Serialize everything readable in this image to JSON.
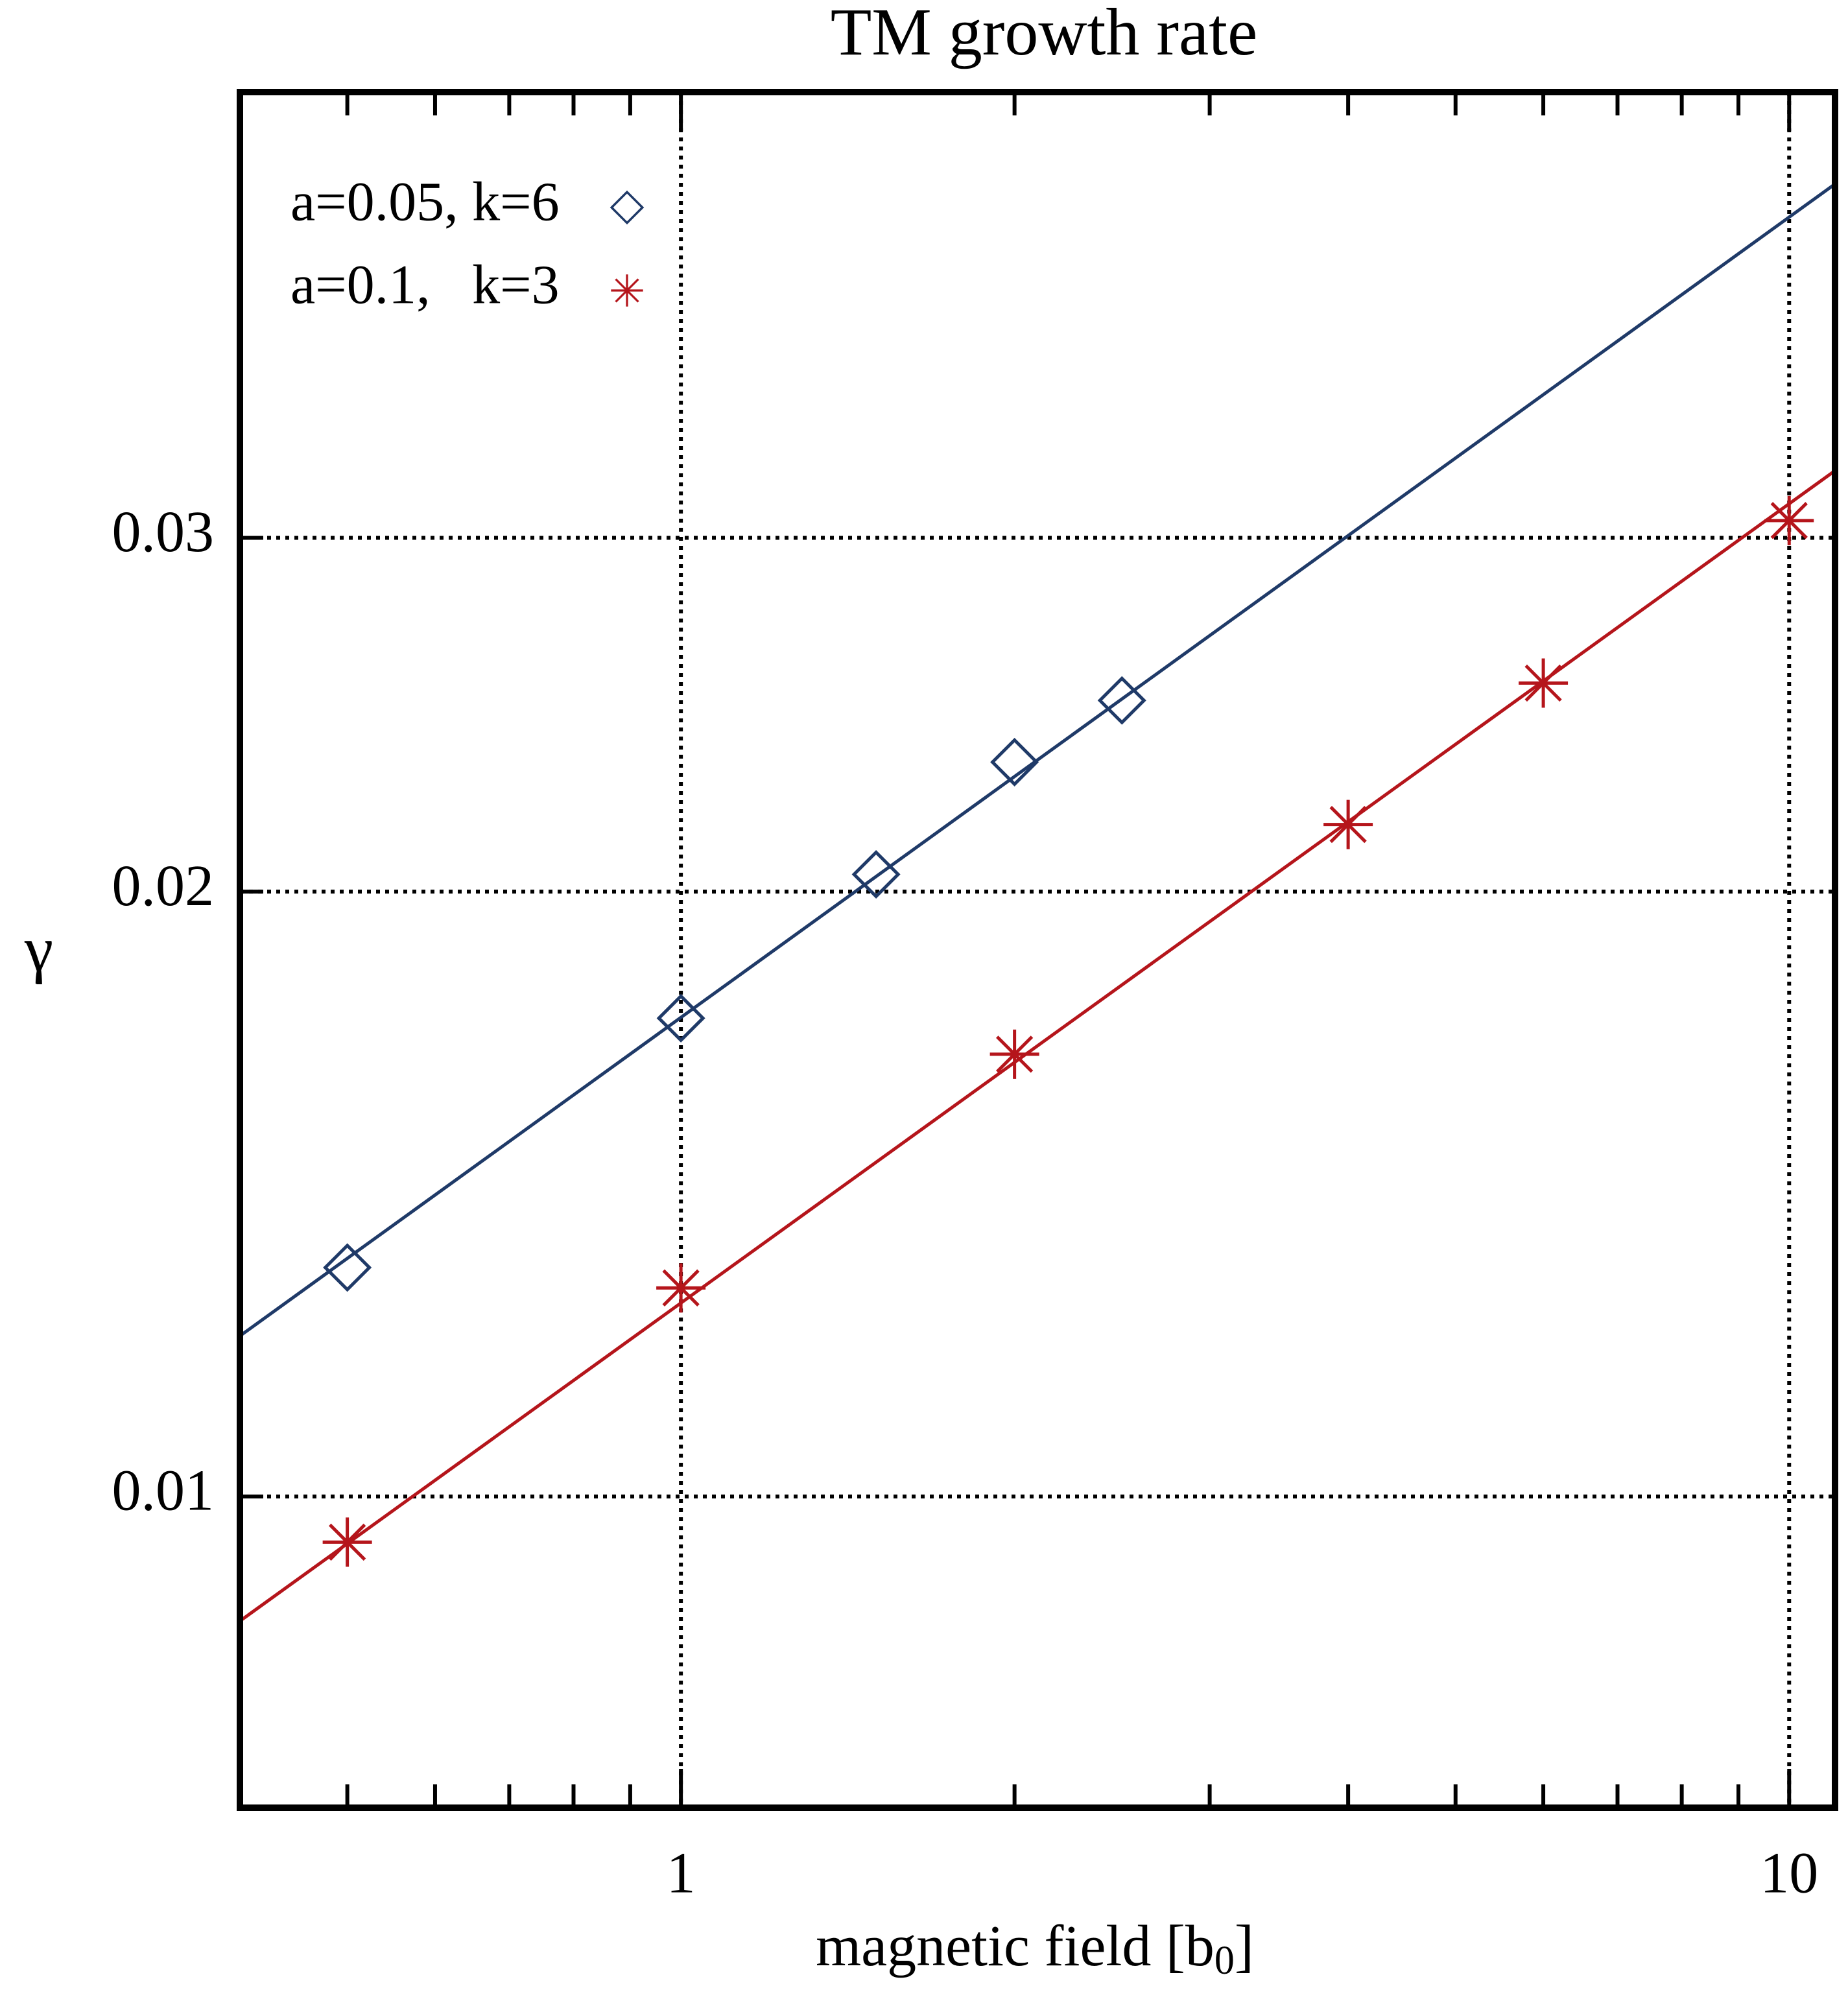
{
  "chart_data": {
    "type": "scatter",
    "title": "TM growth rate",
    "xlabel": [
      "magnetic field [b",
      "0",
      "]"
    ],
    "ylabel": "γ",
    "xscale": "log",
    "yscale": "log",
    "xlim": [
      0.4,
      11
    ],
    "ylim": [
      0.007,
      0.05
    ],
    "xticks": [
      1,
      10
    ],
    "xminorticks": [
      0.5,
      0.6,
      0.7,
      0.8,
      0.9,
      2,
      3,
      4,
      5,
      6,
      7,
      8,
      9
    ],
    "yticks": [
      0.01,
      0.02,
      0.03
    ],
    "grid": true,
    "legend": "upper left",
    "series": [
      {
        "name": "a=0.05, k=6",
        "color": "#1f3a68",
        "marker": "diamond",
        "x": [
          0.5,
          1,
          1.5,
          2,
          2.5
        ],
        "values": [
          0.013,
          0.0173,
          0.0204,
          0.0232,
          0.0249
        ],
        "fit": {
          "x": [
            0.4,
            11
          ],
          "values": [
            0.01202,
            0.045
          ]
        }
      },
      {
        "name": "a=0.1,   k=3",
        "color": "#b5151b",
        "marker": "star",
        "x": [
          0.5,
          1,
          2,
          4,
          6,
          10
        ],
        "values": [
          0.00949,
          0.0127,
          0.0166,
          0.0216,
          0.0254,
          0.0306
        ],
        "fit": {
          "x": [
            0.4,
            11
          ],
          "values": [
            0.00867,
            0.0324
          ]
        }
      }
    ]
  }
}
